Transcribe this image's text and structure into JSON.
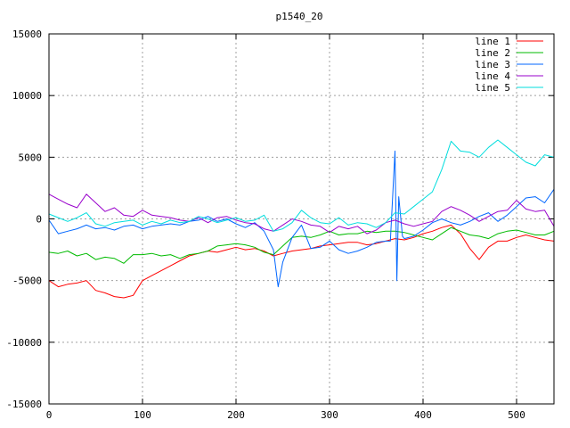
{
  "chart_data": {
    "type": "line",
    "title": "p1540_20",
    "xlabel": "",
    "ylabel": "",
    "xlim": [
      0,
      540
    ],
    "ylim": [
      -15000,
      15000
    ],
    "x_ticks": [
      0,
      100,
      200,
      300,
      400,
      500
    ],
    "y_ticks": [
      -15000,
      -10000,
      -5000,
      0,
      5000,
      10000,
      15000
    ],
    "grid": true,
    "legend_position": "top-right",
    "series": [
      {
        "name": "line 1",
        "color": "#ff0000",
        "x": [
          0,
          10,
          20,
          30,
          40,
          50,
          60,
          70,
          80,
          90,
          100,
          110,
          120,
          130,
          140,
          150,
          160,
          170,
          180,
          190,
          200,
          210,
          220,
          230,
          240,
          250,
          260,
          270,
          280,
          290,
          300,
          310,
          320,
          330,
          340,
          350,
          360,
          370,
          380,
          390,
          400,
          410,
          420,
          430,
          440,
          450,
          460,
          470,
          480,
          490,
          500,
          510,
          520,
          530,
          540
        ],
        "y": [
          -5000,
          -5500,
          -5300,
          -5200,
          -5000,
          -5800,
          -6000,
          -6300,
          -6400,
          -6200,
          -5000,
          -4600,
          -4200,
          -3800,
          -3400,
          -3000,
          -2800,
          -2600,
          -2700,
          -2500,
          -2300,
          -2500,
          -2400,
          -2600,
          -3000,
          -2800,
          -2600,
          -2500,
          -2400,
          -2200,
          -2100,
          -2000,
          -1900,
          -1900,
          -2100,
          -2000,
          -1800,
          -1600,
          -1700,
          -1500,
          -1200,
          -1000,
          -700,
          -500,
          -1200,
          -2400,
          -3300,
          -2300,
          -1800,
          -1800,
          -1500,
          -1300,
          -1500,
          -1700,
          -1800
        ]
      },
      {
        "name": "line 2",
        "color": "#00bb00",
        "x": [
          0,
          10,
          20,
          30,
          40,
          50,
          60,
          70,
          80,
          90,
          100,
          110,
          120,
          130,
          140,
          150,
          160,
          170,
          180,
          190,
          200,
          210,
          220,
          230,
          240,
          250,
          260,
          270,
          280,
          290,
          300,
          310,
          320,
          330,
          340,
          350,
          360,
          370,
          380,
          390,
          400,
          410,
          420,
          430,
          440,
          450,
          460,
          470,
          480,
          490,
          500,
          510,
          520,
          530,
          540
        ],
        "y": [
          -2700,
          -2800,
          -2600,
          -3000,
          -2800,
          -3300,
          -3100,
          -3200,
          -3600,
          -2900,
          -2900,
          -2800,
          -3000,
          -2900,
          -3200,
          -2900,
          -2800,
          -2600,
          -2200,
          -2100,
          -2000,
          -2100,
          -2300,
          -2700,
          -2900,
          -2200,
          -1500,
          -1400,
          -1500,
          -1300,
          -1000,
          -1300,
          -1200,
          -1200,
          -1000,
          -1100,
          -1000,
          -1000,
          -1100,
          -1300,
          -1500,
          -1700,
          -1200,
          -700,
          -1000,
          -1300,
          -1400,
          -1600,
          -1200,
          -1000,
          -900,
          -1100,
          -1300,
          -1300,
          -1000
        ]
      },
      {
        "name": "line 3",
        "color": "#0066ff",
        "x": [
          0,
          10,
          20,
          30,
          40,
          50,
          60,
          70,
          80,
          90,
          100,
          110,
          120,
          130,
          140,
          150,
          160,
          170,
          180,
          190,
          200,
          210,
          220,
          230,
          240,
          245,
          250,
          260,
          270,
          280,
          290,
          300,
          310,
          320,
          330,
          340,
          350,
          360,
          365,
          370,
          372,
          374,
          378,
          380,
          390,
          400,
          410,
          420,
          430,
          440,
          450,
          460,
          470,
          480,
          490,
          500,
          510,
          520,
          530,
          540
        ],
        "y": [
          -100,
          -1200,
          -1000,
          -800,
          -500,
          -800,
          -700,
          -900,
          -600,
          -500,
          -800,
          -600,
          -500,
          -400,
          -500,
          -200,
          -100,
          200,
          -200,
          0,
          -400,
          -700,
          -300,
          -1000,
          -2500,
          -5500,
          -3500,
          -1500,
          -500,
          -2400,
          -2300,
          -1800,
          -2500,
          -2800,
          -2600,
          -2300,
          -1900,
          -1800,
          -1800,
          5500,
          -5000,
          1800,
          -1400,
          -1600,
          -1400,
          -900,
          -300,
          0,
          -300,
          -500,
          -200,
          200,
          500,
          -200,
          300,
          1000,
          1700,
          1800,
          1300,
          2400
        ]
      },
      {
        "name": "line 4",
        "color": "#9900cc",
        "x": [
          0,
          10,
          20,
          30,
          40,
          50,
          60,
          70,
          80,
          90,
          100,
          110,
          120,
          130,
          140,
          150,
          160,
          170,
          180,
          190,
          200,
          210,
          220,
          230,
          240,
          250,
          260,
          270,
          280,
          290,
          300,
          310,
          320,
          330,
          340,
          350,
          360,
          370,
          380,
          390,
          400,
          410,
          420,
          430,
          440,
          450,
          460,
          470,
          480,
          490,
          500,
          510,
          520,
          530,
          540
        ],
        "y": [
          2000,
          1600,
          1200,
          900,
          2000,
          1300,
          600,
          900,
          300,
          200,
          700,
          300,
          200,
          100,
          -100,
          -200,
          100,
          -300,
          100,
          200,
          -100,
          -300,
          -400,
          -800,
          -1000,
          -500,
          0,
          -200,
          -500,
          -600,
          -1100,
          -600,
          -800,
          -600,
          -1200,
          -900,
          -300,
          -100,
          -400,
          -600,
          -400,
          -200,
          600,
          1000,
          700,
          300,
          -200,
          200,
          600,
          700,
          1500,
          800,
          600,
          700,
          -600
        ]
      },
      {
        "name": "line 5",
        "color": "#00dddd",
        "x": [
          0,
          10,
          20,
          30,
          40,
          50,
          60,
          70,
          80,
          90,
          100,
          110,
          120,
          130,
          140,
          150,
          160,
          170,
          180,
          190,
          200,
          210,
          220,
          230,
          240,
          250,
          260,
          270,
          280,
          290,
          300,
          310,
          320,
          330,
          340,
          350,
          360,
          370,
          380,
          390,
          400,
          410,
          420,
          430,
          440,
          450,
          460,
          470,
          480,
          490,
          500,
          510,
          520,
          530,
          540
        ],
        "y": [
          400,
          100,
          -200,
          100,
          500,
          -400,
          -600,
          -300,
          -200,
          -100,
          -500,
          -200,
          -400,
          -100,
          -300,
          -200,
          200,
          0,
          -300,
          -100,
          100,
          -200,
          -100,
          300,
          -1000,
          -800,
          -300,
          700,
          100,
          -300,
          -400,
          100,
          -500,
          -300,
          -400,
          -700,
          -300,
          500,
          400,
          1000,
          1600,
          2200,
          4000,
          6300,
          5500,
          5400,
          5000,
          5800,
          6400,
          5800,
          5200,
          4600,
          4300,
          5200,
          5000
        ]
      }
    ]
  }
}
